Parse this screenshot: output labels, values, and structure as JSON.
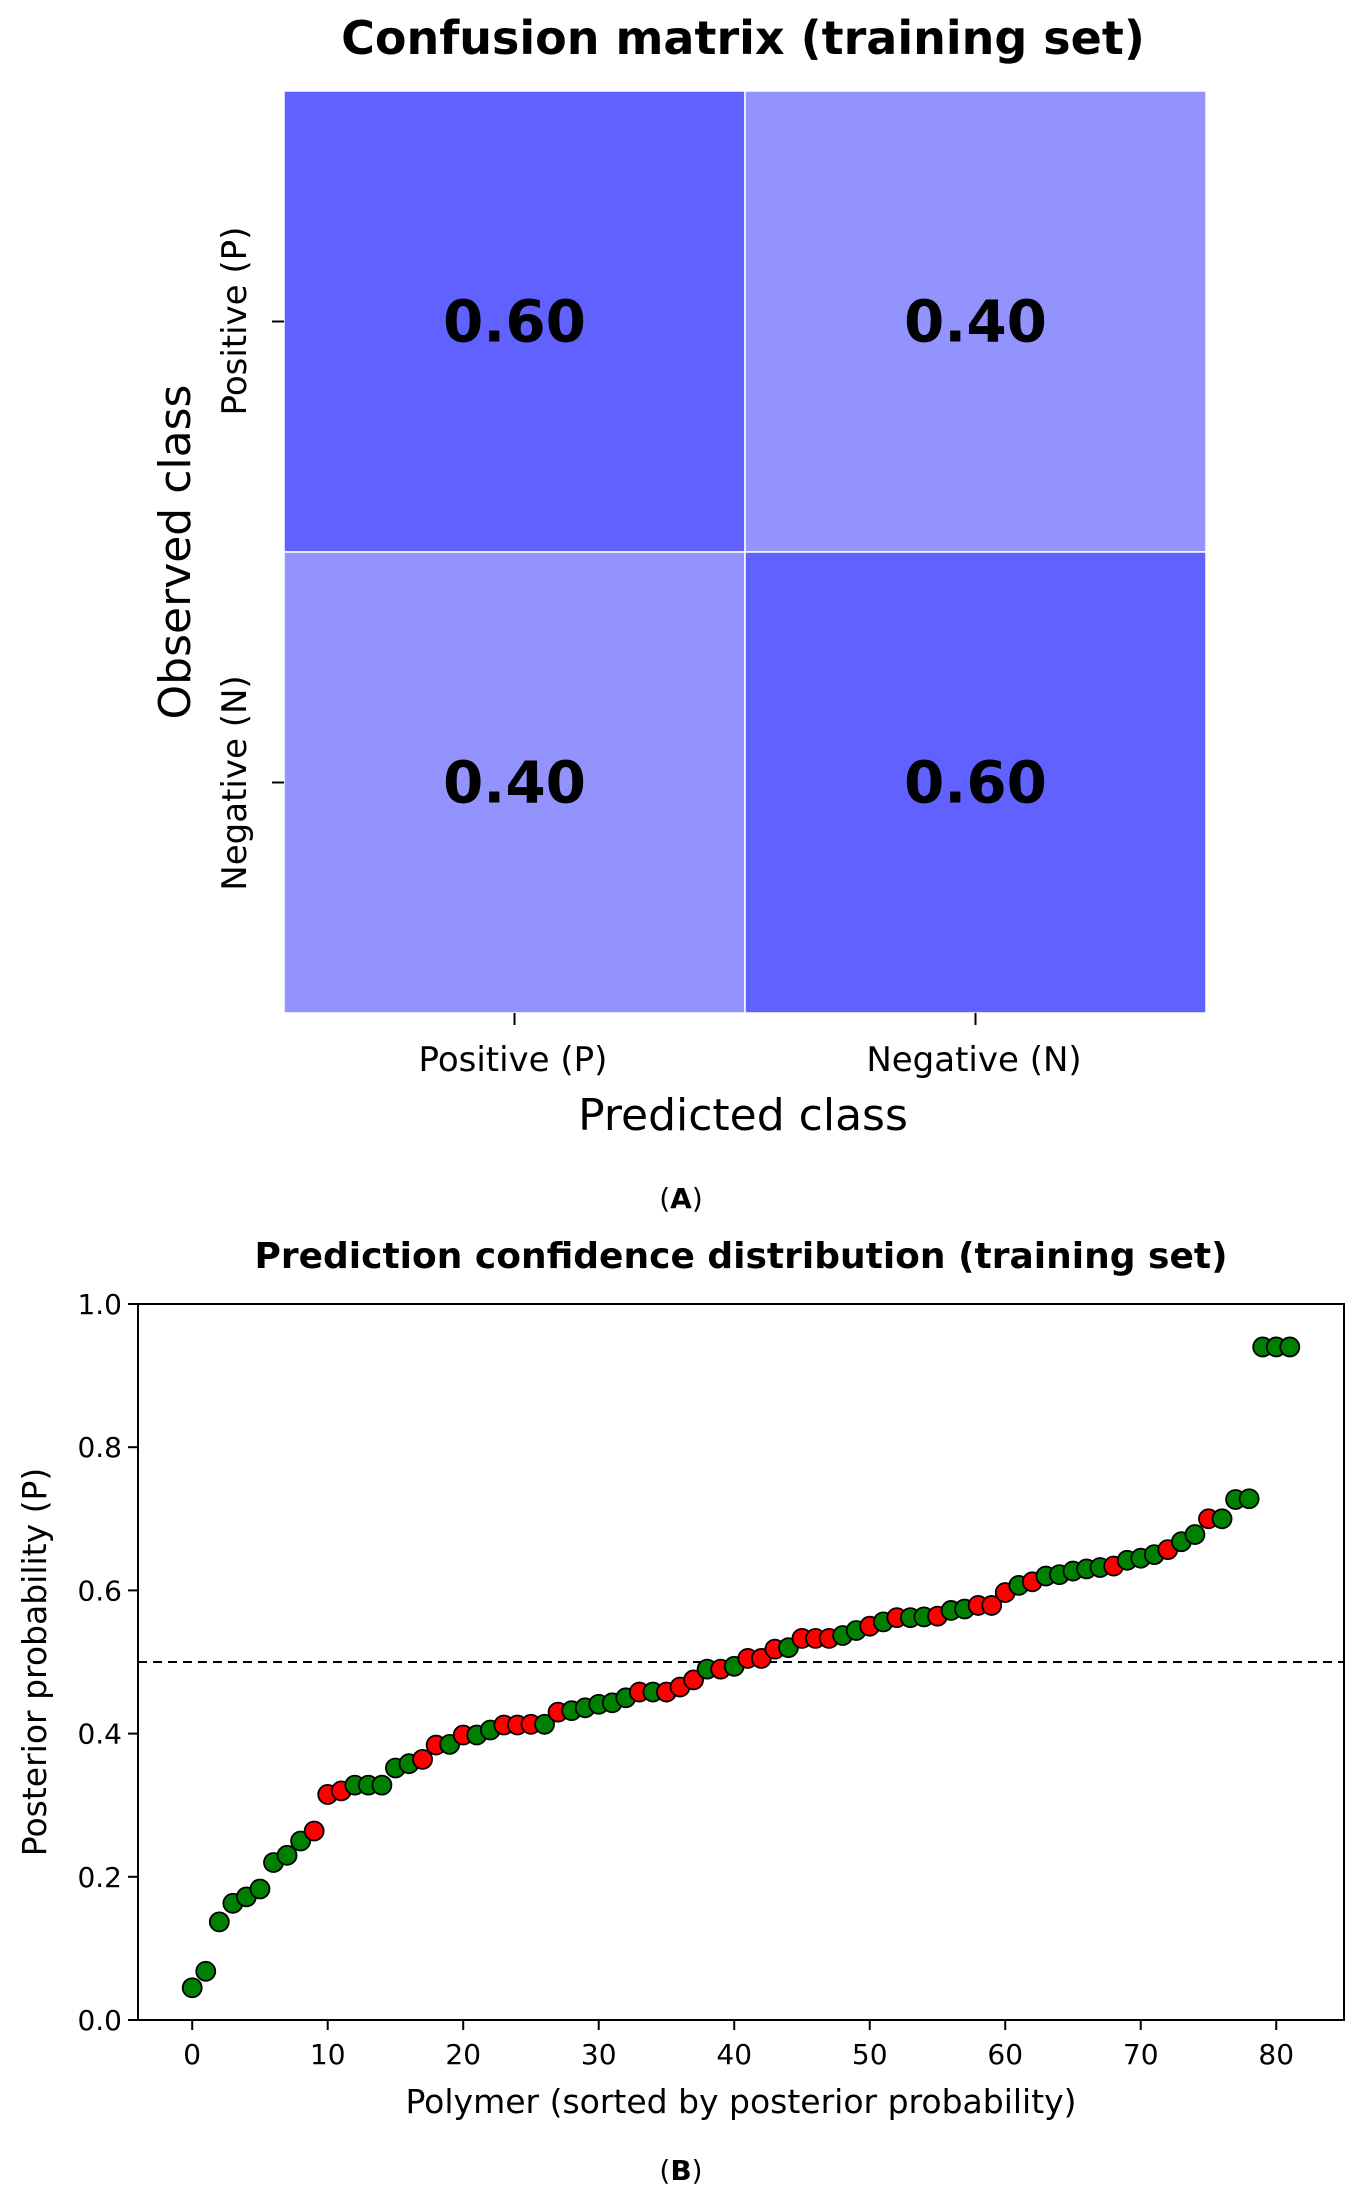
{
  "panel_labels": {
    "a": "A",
    "b": "B"
  },
  "chart_data": [
    {
      "type": "heatmap",
      "title": "Confusion matrix (training set)",
      "xlabel": "Predicted class",
      "ylabel": "Observed class",
      "x_categories": [
        "Positive (P)",
        "Negative (N)"
      ],
      "y_categories": [
        "Positive (P)",
        "Negative (N)"
      ],
      "values": [
        [
          0.6,
          0.4
        ],
        [
          0.4,
          0.6
        ]
      ],
      "value_labels": [
        [
          "0.60",
          "0.40"
        ],
        [
          "0.40",
          "0.60"
        ]
      ],
      "colors": {
        "high": "#6161ff",
        "low": "#9393fd",
        "text": "#000000",
        "cell_border": "#ffffff"
      }
    },
    {
      "type": "scatter",
      "title": "Prediction confidence distribution (training set)",
      "xlabel": "Polymer (sorted by posterior probability)",
      "ylabel": "Posterior probability (P)",
      "xlim": [
        -4,
        85
      ],
      "ylim": [
        0.0,
        1.0
      ],
      "xticks": [
        0,
        10,
        20,
        30,
        40,
        50,
        60,
        70,
        80
      ],
      "xtick_labels": [
        "0",
        "10",
        "20",
        "30",
        "40",
        "50",
        "60",
        "70",
        "80"
      ],
      "yticks": [
        0.0,
        0.2,
        0.4,
        0.6,
        0.8,
        1.0
      ],
      "ytick_labels": [
        "0.0",
        "0.2",
        "0.4",
        "0.6",
        "0.8",
        "1.0"
      ],
      "threshold": 0.5,
      "grid": false,
      "colors": {
        "green": "#008000",
        "red": "#ff0000",
        "edge": "#000000"
      },
      "points": [
        {
          "x": 0,
          "y": 0.045,
          "c": "green"
        },
        {
          "x": 1,
          "y": 0.068,
          "c": "green"
        },
        {
          "x": 2,
          "y": 0.137,
          "c": "green"
        },
        {
          "x": 3,
          "y": 0.163,
          "c": "green"
        },
        {
          "x": 4,
          "y": 0.172,
          "c": "green"
        },
        {
          "x": 5,
          "y": 0.183,
          "c": "green"
        },
        {
          "x": 6,
          "y": 0.22,
          "c": "green"
        },
        {
          "x": 7,
          "y": 0.23,
          "c": "green"
        },
        {
          "x": 8,
          "y": 0.25,
          "c": "green"
        },
        {
          "x": 9,
          "y": 0.264,
          "c": "red"
        },
        {
          "x": 10,
          "y": 0.315,
          "c": "red"
        },
        {
          "x": 11,
          "y": 0.32,
          "c": "red"
        },
        {
          "x": 12,
          "y": 0.328,
          "c": "green"
        },
        {
          "x": 13,
          "y": 0.328,
          "c": "green"
        },
        {
          "x": 14,
          "y": 0.328,
          "c": "green"
        },
        {
          "x": 15,
          "y": 0.352,
          "c": "green"
        },
        {
          "x": 16,
          "y": 0.358,
          "c": "green"
        },
        {
          "x": 17,
          "y": 0.364,
          "c": "red"
        },
        {
          "x": 18,
          "y": 0.384,
          "c": "red"
        },
        {
          "x": 19,
          "y": 0.385,
          "c": "green"
        },
        {
          "x": 20,
          "y": 0.398,
          "c": "red"
        },
        {
          "x": 21,
          "y": 0.398,
          "c": "green"
        },
        {
          "x": 22,
          "y": 0.405,
          "c": "green"
        },
        {
          "x": 23,
          "y": 0.412,
          "c": "red"
        },
        {
          "x": 24,
          "y": 0.412,
          "c": "red"
        },
        {
          "x": 25,
          "y": 0.413,
          "c": "red"
        },
        {
          "x": 26,
          "y": 0.413,
          "c": "green"
        },
        {
          "x": 27,
          "y": 0.43,
          "c": "red"
        },
        {
          "x": 28,
          "y": 0.432,
          "c": "green"
        },
        {
          "x": 29,
          "y": 0.436,
          "c": "green"
        },
        {
          "x": 30,
          "y": 0.441,
          "c": "green"
        },
        {
          "x": 31,
          "y": 0.443,
          "c": "green"
        },
        {
          "x": 32,
          "y": 0.45,
          "c": "green"
        },
        {
          "x": 33,
          "y": 0.458,
          "c": "red"
        },
        {
          "x": 34,
          "y": 0.458,
          "c": "green"
        },
        {
          "x": 35,
          "y": 0.458,
          "c": "red"
        },
        {
          "x": 36,
          "y": 0.465,
          "c": "red"
        },
        {
          "x": 37,
          "y": 0.475,
          "c": "red"
        },
        {
          "x": 38,
          "y": 0.49,
          "c": "green"
        },
        {
          "x": 39,
          "y": 0.49,
          "c": "red"
        },
        {
          "x": 40,
          "y": 0.494,
          "c": "green"
        },
        {
          "x": 41,
          "y": 0.505,
          "c": "red"
        },
        {
          "x": 42,
          "y": 0.505,
          "c": "red"
        },
        {
          "x": 43,
          "y": 0.518,
          "c": "red"
        },
        {
          "x": 44,
          "y": 0.52,
          "c": "green"
        },
        {
          "x": 45,
          "y": 0.533,
          "c": "red"
        },
        {
          "x": 46,
          "y": 0.533,
          "c": "red"
        },
        {
          "x": 47,
          "y": 0.533,
          "c": "red"
        },
        {
          "x": 48,
          "y": 0.537,
          "c": "green"
        },
        {
          "x": 49,
          "y": 0.544,
          "c": "green"
        },
        {
          "x": 50,
          "y": 0.55,
          "c": "red"
        },
        {
          "x": 51,
          "y": 0.556,
          "c": "green"
        },
        {
          "x": 52,
          "y": 0.562,
          "c": "red"
        },
        {
          "x": 53,
          "y": 0.562,
          "c": "green"
        },
        {
          "x": 54,
          "y": 0.563,
          "c": "green"
        },
        {
          "x": 55,
          "y": 0.564,
          "c": "red"
        },
        {
          "x": 56,
          "y": 0.572,
          "c": "green"
        },
        {
          "x": 57,
          "y": 0.574,
          "c": "green"
        },
        {
          "x": 58,
          "y": 0.579,
          "c": "red"
        },
        {
          "x": 59,
          "y": 0.579,
          "c": "red"
        },
        {
          "x": 60,
          "y": 0.597,
          "c": "red"
        },
        {
          "x": 61,
          "y": 0.607,
          "c": "green"
        },
        {
          "x": 62,
          "y": 0.612,
          "c": "red"
        },
        {
          "x": 63,
          "y": 0.62,
          "c": "green"
        },
        {
          "x": 64,
          "y": 0.622,
          "c": "green"
        },
        {
          "x": 65,
          "y": 0.627,
          "c": "green"
        },
        {
          "x": 66,
          "y": 0.63,
          "c": "green"
        },
        {
          "x": 67,
          "y": 0.632,
          "c": "green"
        },
        {
          "x": 68,
          "y": 0.634,
          "c": "red"
        },
        {
          "x": 69,
          "y": 0.642,
          "c": "green"
        },
        {
          "x": 70,
          "y": 0.645,
          "c": "green"
        },
        {
          "x": 71,
          "y": 0.65,
          "c": "green"
        },
        {
          "x": 72,
          "y": 0.657,
          "c": "red"
        },
        {
          "x": 73,
          "y": 0.668,
          "c": "green"
        },
        {
          "x": 74,
          "y": 0.678,
          "c": "green"
        },
        {
          "x": 75,
          "y": 0.7,
          "c": "red"
        },
        {
          "x": 76,
          "y": 0.7,
          "c": "green"
        },
        {
          "x": 77,
          "y": 0.727,
          "c": "green"
        },
        {
          "x": 78,
          "y": 0.728,
          "c": "green"
        },
        {
          "x": 79,
          "y": 0.94,
          "c": "green"
        },
        {
          "x": 80,
          "y": 0.94,
          "c": "green"
        },
        {
          "x": 81,
          "y": 0.94,
          "c": "green"
        }
      ]
    }
  ]
}
